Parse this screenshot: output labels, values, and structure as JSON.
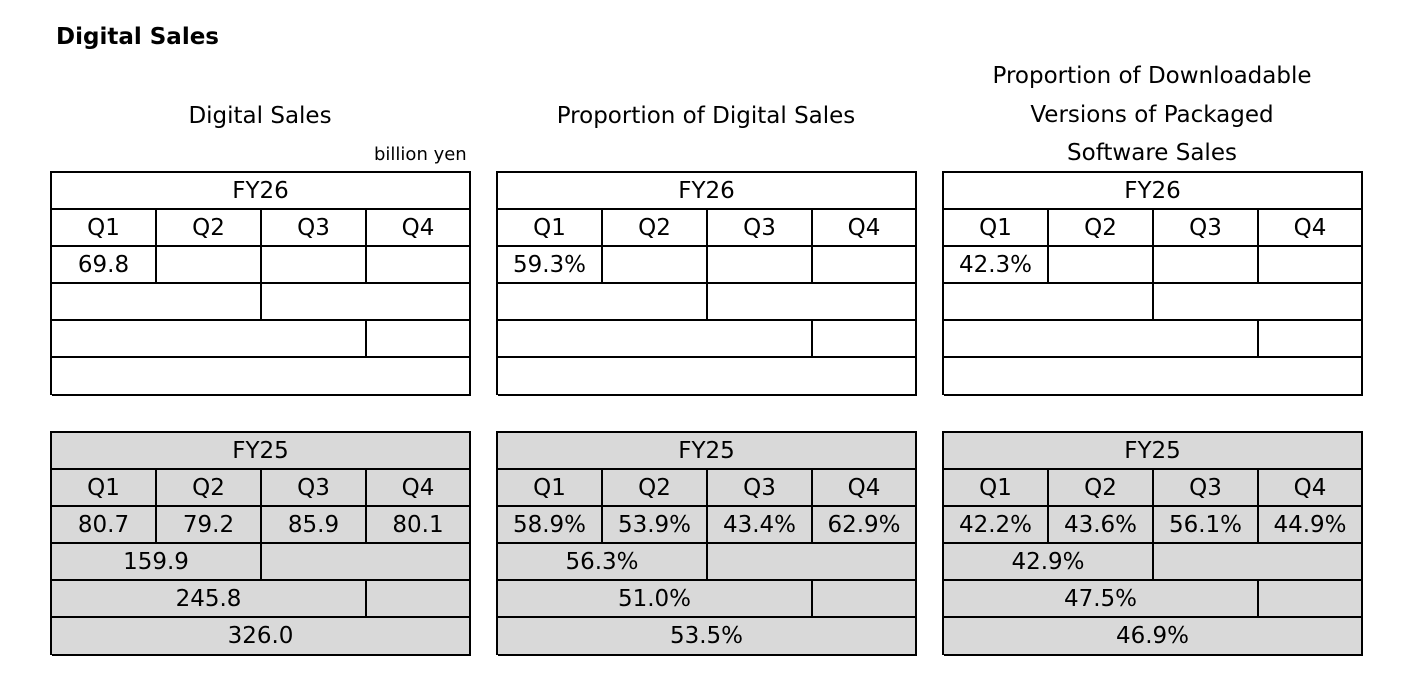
{
  "title": "Digital Sales",
  "columns": [
    {
      "title_lines": [
        "Digital Sales"
      ],
      "unit": "billion yen",
      "fy26": {
        "year": "FY26",
        "quarters": [
          "Q1",
          "Q2",
          "Q3",
          "Q4"
        ],
        "values": [
          "69.8",
          "",
          "",
          ""
        ],
        "h1": "",
        "nine_months": "",
        "full_year": ""
      },
      "fy25": {
        "year": "FY25",
        "quarters": [
          "Q1",
          "Q2",
          "Q3",
          "Q4"
        ],
        "values": [
          "80.7",
          "79.2",
          "85.9",
          "80.1"
        ],
        "h1": "159.9",
        "nine_months": "245.8",
        "full_year": "326.0"
      }
    },
    {
      "title_lines": [
        "Proportion of Digital Sales"
      ],
      "unit": "",
      "fy26": {
        "year": "FY26",
        "quarters": [
          "Q1",
          "Q2",
          "Q3",
          "Q4"
        ],
        "values": [
          "59.3%",
          "",
          "",
          ""
        ],
        "h1": "",
        "nine_months": "",
        "full_year": ""
      },
      "fy25": {
        "year": "FY25",
        "quarters": [
          "Q1",
          "Q2",
          "Q3",
          "Q4"
        ],
        "values": [
          "58.9%",
          "53.9%",
          "43.4%",
          "62.9%"
        ],
        "h1": "56.3%",
        "nine_months": "51.0%",
        "full_year": "53.5%"
      }
    },
    {
      "title_lines": [
        "Proportion of Downloadable",
        "Versions of Packaged",
        "Software Sales"
      ],
      "unit": "",
      "fy26": {
        "year": "FY26",
        "quarters": [
          "Q1",
          "Q2",
          "Q3",
          "Q4"
        ],
        "values": [
          "42.3%",
          "",
          "",
          ""
        ],
        "h1": "",
        "nine_months": "",
        "full_year": ""
      },
      "fy25": {
        "year": "FY25",
        "quarters": [
          "Q1",
          "Q2",
          "Q3",
          "Q4"
        ],
        "values": [
          "42.2%",
          "43.6%",
          "56.1%",
          "44.9%"
        ],
        "h1": "42.9%",
        "nine_months": "47.5%",
        "full_year": "46.9%"
      }
    }
  ]
}
